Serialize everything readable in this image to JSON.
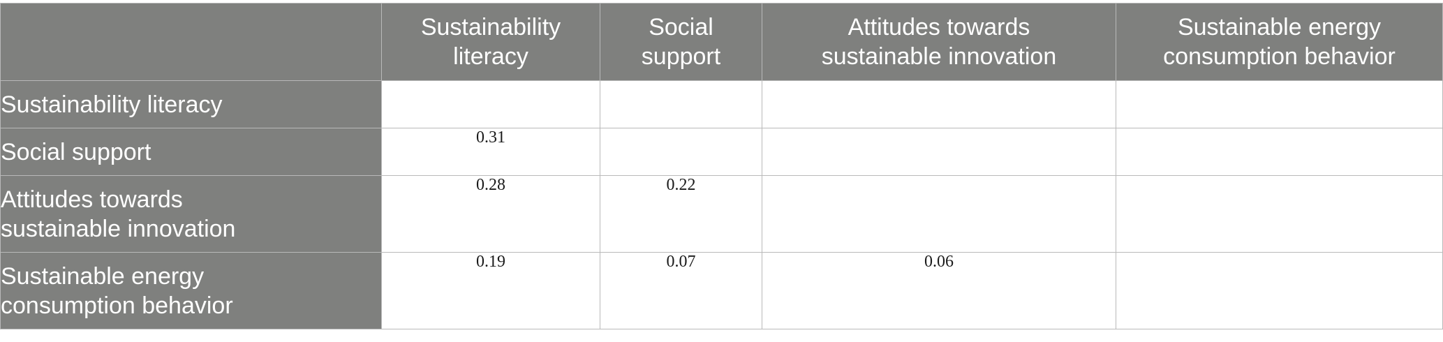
{
  "table": {
    "corner": "",
    "columns": [
      "Sustainability\nliteracy",
      "Social\nsupport",
      "Attitudes towards\nsustainable innovation",
      "Sustainable energy\nconsumption behavior"
    ],
    "rows": [
      {
        "label": "Sustainability literacy",
        "cells": [
          "",
          "",
          "",
          ""
        ]
      },
      {
        "label": "Social support",
        "cells": [
          "0.31",
          "",
          "",
          ""
        ]
      },
      {
        "label": "Attitudes towards\nsustainable innovation",
        "cells": [
          "0.28",
          "0.22",
          "",
          ""
        ]
      },
      {
        "label": "Sustainable energy\nconsumption behavior",
        "cells": [
          "0.19",
          "0.07",
          "0.06",
          ""
        ]
      }
    ]
  },
  "colors": {
    "header_bg": "#7f807e",
    "header_text": "#ffffff",
    "grid_line": "#b9b9b9"
  }
}
